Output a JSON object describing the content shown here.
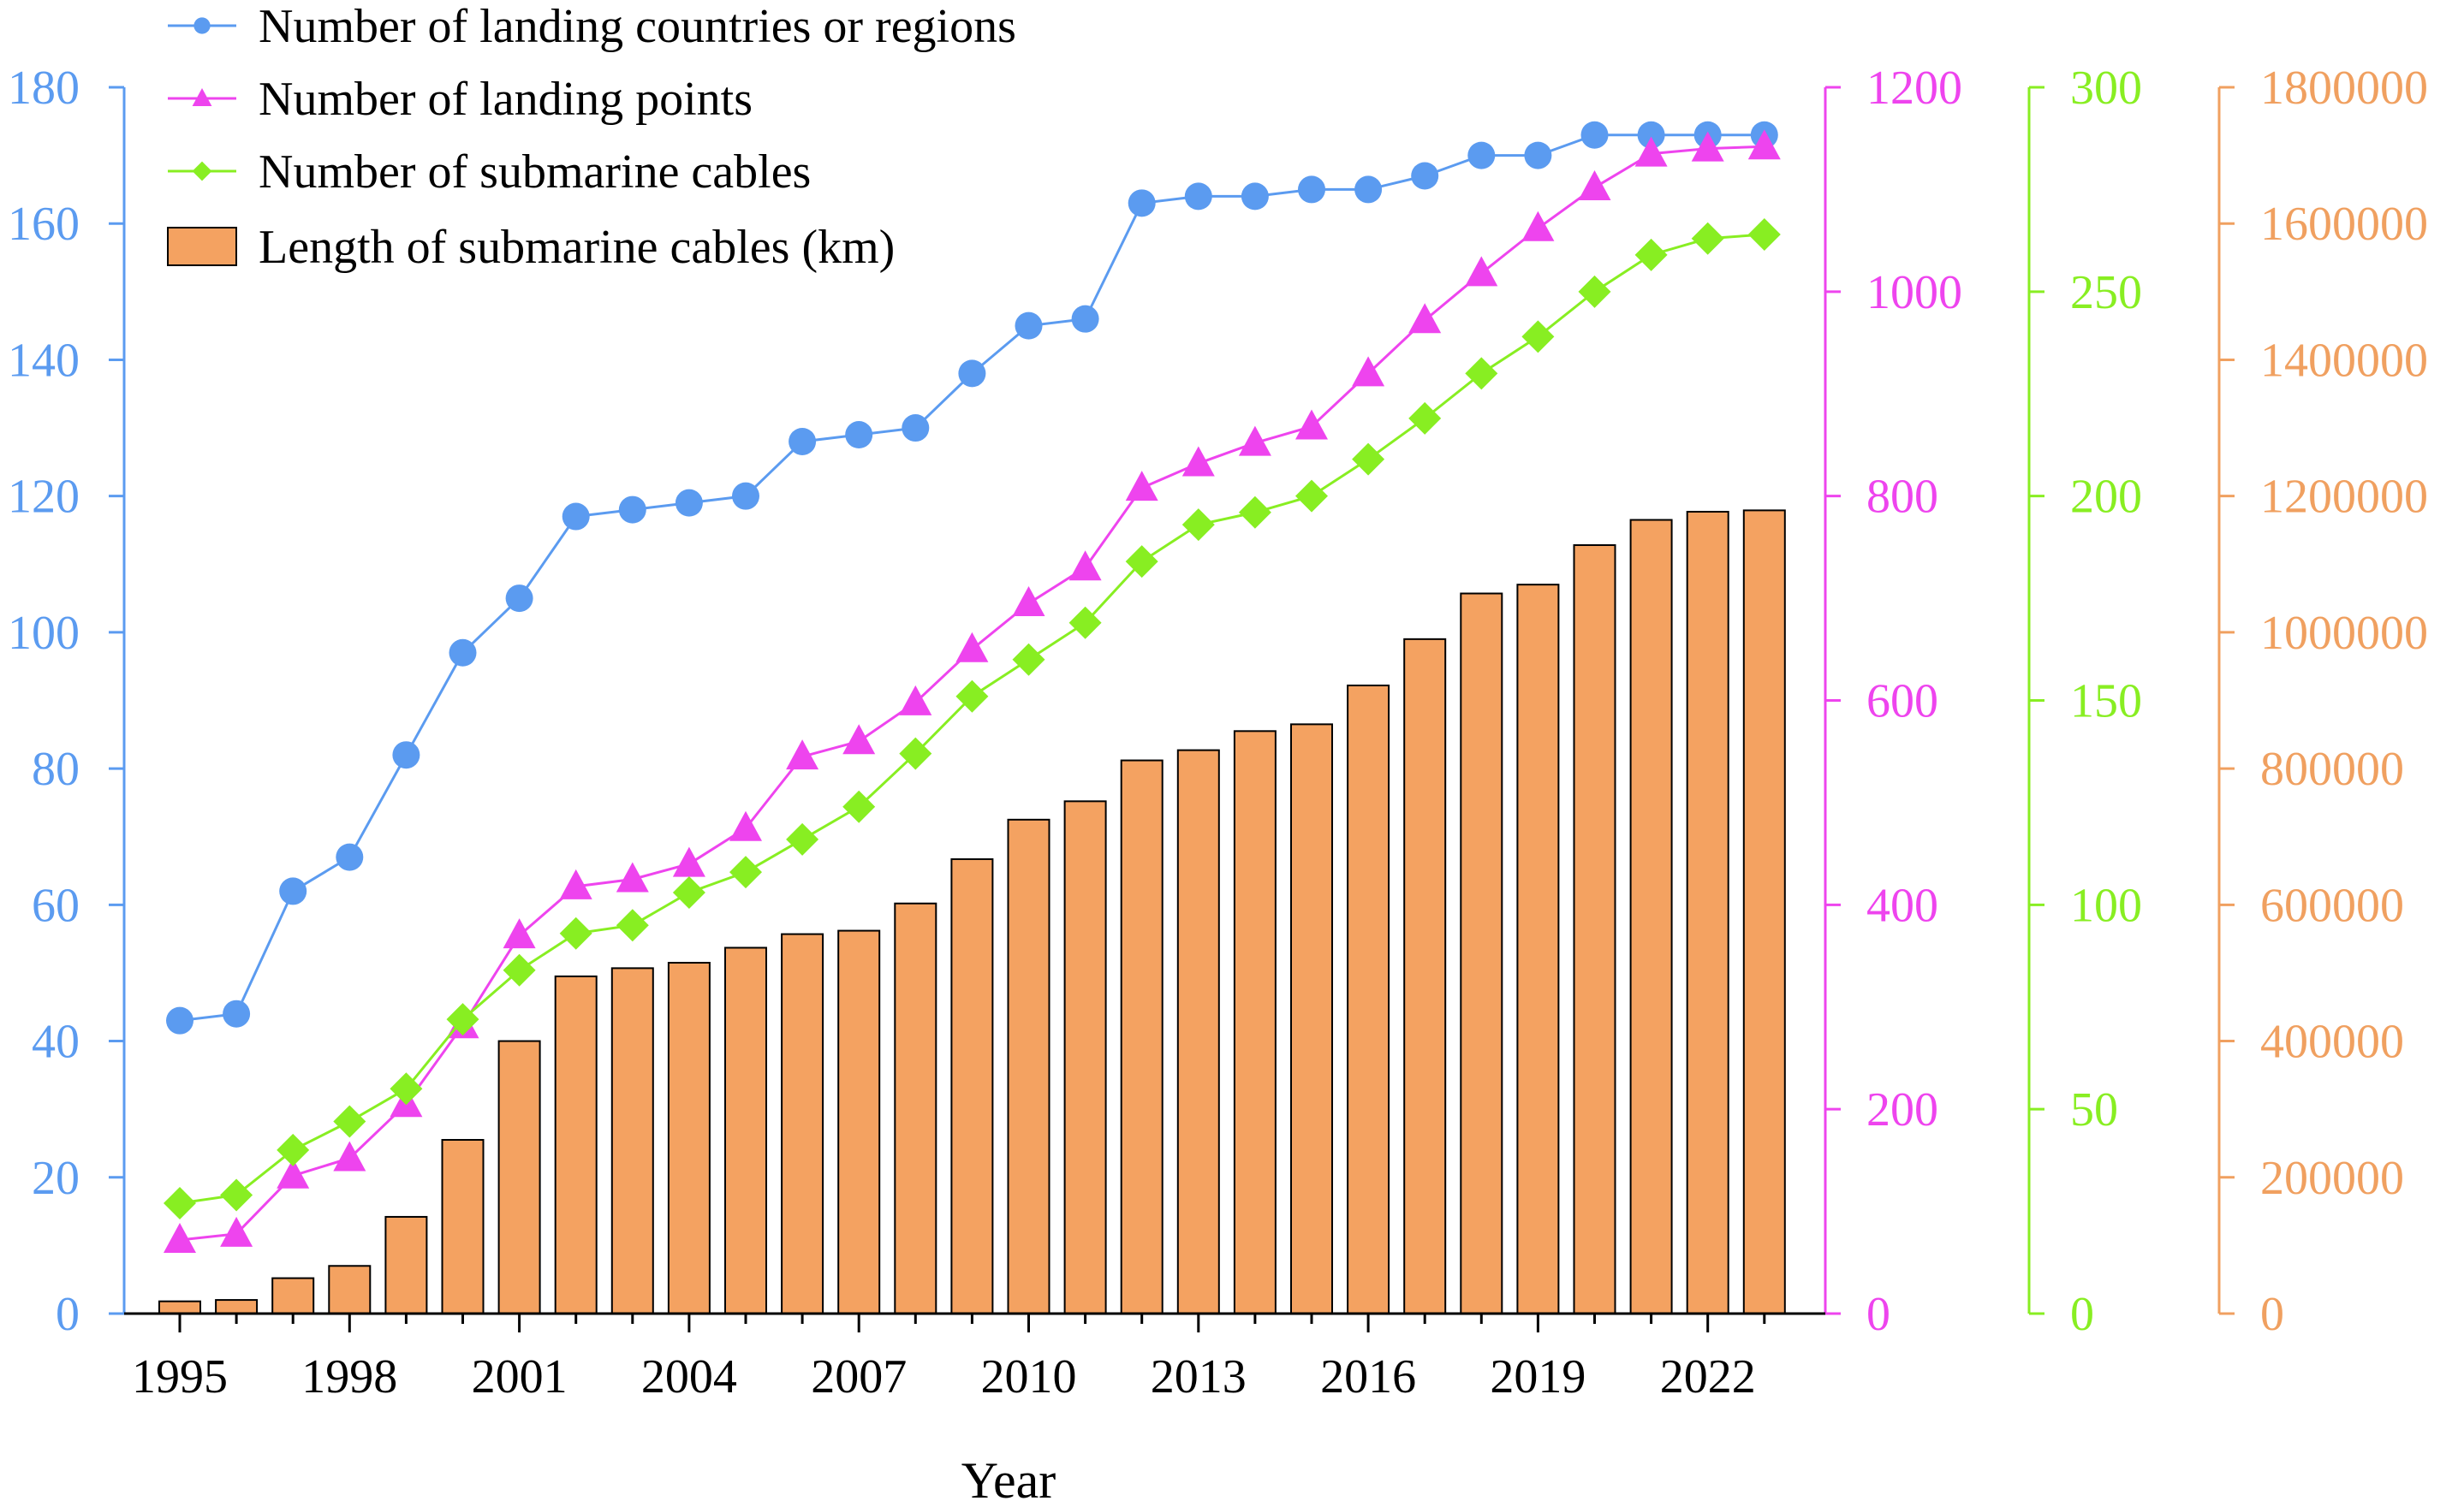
{
  "chart_data": {
    "type": "bar",
    "xlabel": "Year",
    "x": [
      1995,
      1996,
      1997,
      1998,
      1999,
      2000,
      2001,
      2002,
      2003,
      2004,
      2005,
      2006,
      2007,
      2008,
      2009,
      2010,
      2011,
      2012,
      2013,
      2014,
      2015,
      2016,
      2017,
      2018,
      2019,
      2020,
      2021,
      2022,
      2023
    ],
    "x_tick_labels": [
      "1995",
      "1998",
      "2001",
      "2004",
      "2007",
      "2010",
      "2013",
      "2016",
      "2019",
      "2022"
    ],
    "axes": {
      "left": {
        "color": "#5b9bf0",
        "range": [
          0,
          180
        ],
        "ticks": [
          "0",
          "20",
          "40",
          "60",
          "80",
          "100",
          "120",
          "140",
          "160",
          "180"
        ]
      },
      "right1": {
        "color": "#ee44ee",
        "range": [
          0,
          1200
        ],
        "ticks": [
          "0",
          "200",
          "400",
          "600",
          "800",
          "1000",
          "1200"
        ]
      },
      "right2": {
        "color": "#88ee22",
        "range": [
          0,
          300
        ],
        "ticks": [
          "0",
          "50",
          "100",
          "150",
          "200",
          "250",
          "300"
        ]
      },
      "right3": {
        "color": "#f0a060",
        "range": [
          0,
          1800000
        ],
        "ticks": [
          "0",
          "200000",
          "400000",
          "600000",
          "800000",
          "1000000",
          "1200000",
          "1400000",
          "1600000",
          "1800000"
        ]
      }
    },
    "series": [
      {
        "name": "Number of landing countries or regions",
        "kind": "line",
        "axis": "left",
        "marker": "circle",
        "color": "#5b9bf0",
        "values": [
          43,
          44,
          62,
          67,
          82,
          97,
          105,
          117,
          118,
          119,
          120,
          128,
          129,
          130,
          138,
          145,
          146,
          163,
          164,
          164,
          165,
          165,
          167,
          170,
          170,
          173,
          173,
          173,
          173
        ]
      },
      {
        "name": "Number of landing points",
        "kind": "line",
        "axis": "right1",
        "marker": "triangle",
        "color": "#ee44ee",
        "values": [
          72,
          78,
          135,
          152,
          205,
          282,
          370,
          418,
          425,
          440,
          475,
          545,
          560,
          598,
          650,
          695,
          730,
          808,
          832,
          852,
          868,
          920,
          972,
          1018,
          1062,
          1102,
          1135,
          1140,
          1142
        ]
      },
      {
        "name": "Number of submarine cables",
        "kind": "line",
        "axis": "right2",
        "marker": "diamond",
        "color": "#88ee22",
        "values": [
          27,
          29,
          40,
          47,
          55,
          72,
          84,
          93,
          95,
          103,
          108,
          116,
          124,
          137,
          151,
          160,
          169,
          184,
          193,
          196,
          200,
          209,
          219,
          230,
          239,
          250,
          259,
          263,
          264
        ]
      },
      {
        "name": "Length of submarine cables (km)",
        "kind": "bar",
        "axis": "right3",
        "color": "#f4a261",
        "values": [
          18000,
          20000,
          52000,
          70000,
          142000,
          255000,
          400000,
          495000,
          507000,
          515000,
          537000,
          557000,
          562000,
          602000,
          667000,
          725000,
          752000,
          812000,
          827000,
          855000,
          865000,
          922000,
          990000,
          1057000,
          1070000,
          1128000,
          1165000,
          1177000,
          1179000
        ]
      }
    ],
    "legend_position": "top-left",
    "grid": false
  }
}
